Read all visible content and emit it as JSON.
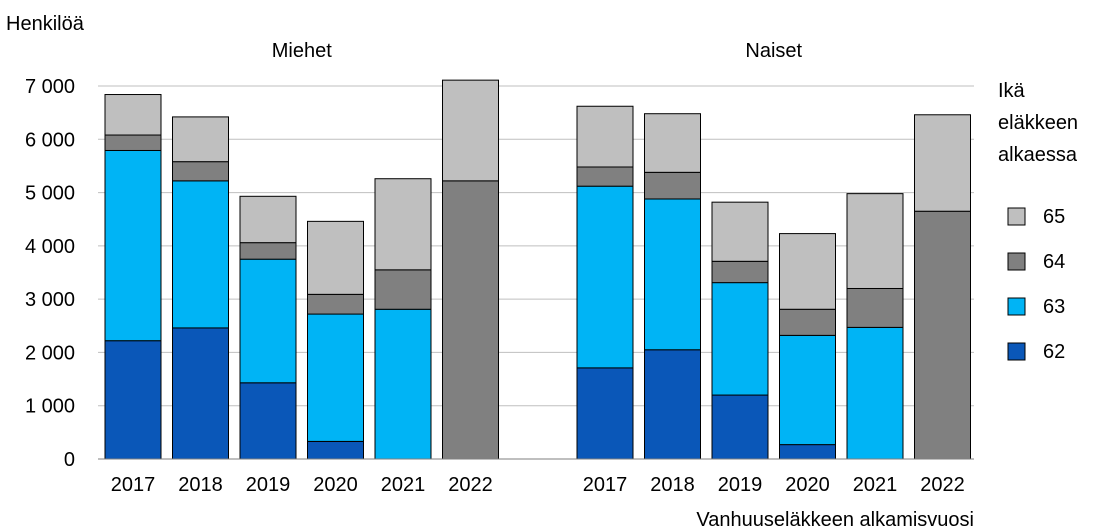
{
  "chart_data": {
    "type": "bar",
    "stacked": true,
    "ylabel": "Henkilöä",
    "xlabel": "Vanhuuseläkkeen alkamisvuosi",
    "ylim": [
      0,
      7000
    ],
    "yticks": [
      0,
      1000,
      2000,
      3000,
      4000,
      5000,
      6000,
      7000
    ],
    "ytick_labels": [
      "0",
      "1 000",
      "2 000",
      "3 000",
      "4 000",
      "5 000",
      "6 000",
      "7 000"
    ],
    "grid": true,
    "legend_title": "Ikä eläkkeen alkaessa",
    "legend_title_lines": [
      "Ikä",
      "eläkkeen",
      "alkaessa"
    ],
    "legend_position": "right",
    "series_colors": {
      "62": "#0a57b8",
      "63": "#00b4f5",
      "64": "#808080",
      "65": "#bfbfbf"
    },
    "groups": [
      {
        "name": "Miehet",
        "categories": [
          "2017",
          "2018",
          "2019",
          "2020",
          "2021",
          "2022"
        ],
        "series": [
          {
            "name": "62",
            "values": [
              2220,
              2460,
              1430,
              330,
              0,
              0
            ]
          },
          {
            "name": "63",
            "values": [
              3570,
              2760,
              2320,
              2390,
              2810,
              0
            ]
          },
          {
            "name": "64",
            "values": [
              290,
              360,
              310,
              370,
              740,
              5220
            ]
          },
          {
            "name": "65",
            "values": [
              760,
              840,
              870,
              1370,
              1710,
              1890
            ]
          }
        ]
      },
      {
        "name": "Naiset",
        "categories": [
          "2017",
          "2018",
          "2019",
          "2020",
          "2021",
          "2022"
        ],
        "series": [
          {
            "name": "62",
            "values": [
              1710,
              2050,
              1200,
              270,
              0,
              0
            ]
          },
          {
            "name": "63",
            "values": [
              3410,
              2830,
              2110,
              2050,
              2470,
              0
            ]
          },
          {
            "name": "64",
            "values": [
              360,
              500,
              400,
              490,
              730,
              4650
            ]
          },
          {
            "name": "65",
            "values": [
              1140,
              1100,
              1110,
              1420,
              1780,
              1810
            ]
          }
        ]
      }
    ]
  }
}
